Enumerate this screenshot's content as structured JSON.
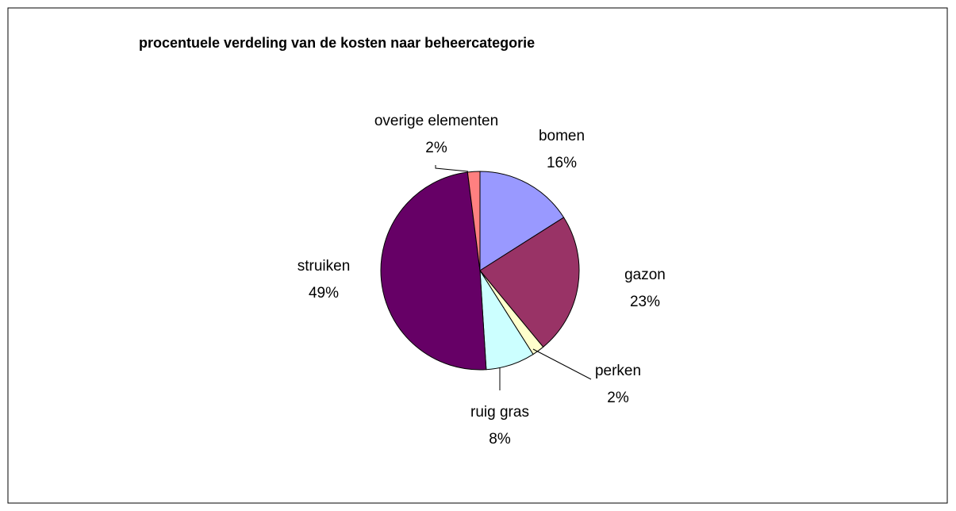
{
  "chart_data": {
    "type": "pie",
    "title": "procentuele verdeling van de kosten naar beheercategorie",
    "categories": [
      "bomen",
      "gazon",
      "perken",
      "ruig gras",
      "struiken",
      "overige elementen"
    ],
    "values": [
      16,
      23,
      2,
      8,
      49,
      2
    ],
    "value_labels": [
      "16%",
      "23%",
      "2%",
      "8%",
      "49%",
      "2%"
    ],
    "colors": [
      "#9999ff",
      "#993366",
      "#ffffcc",
      "#ccffff",
      "#660066",
      "#ff8080"
    ]
  }
}
